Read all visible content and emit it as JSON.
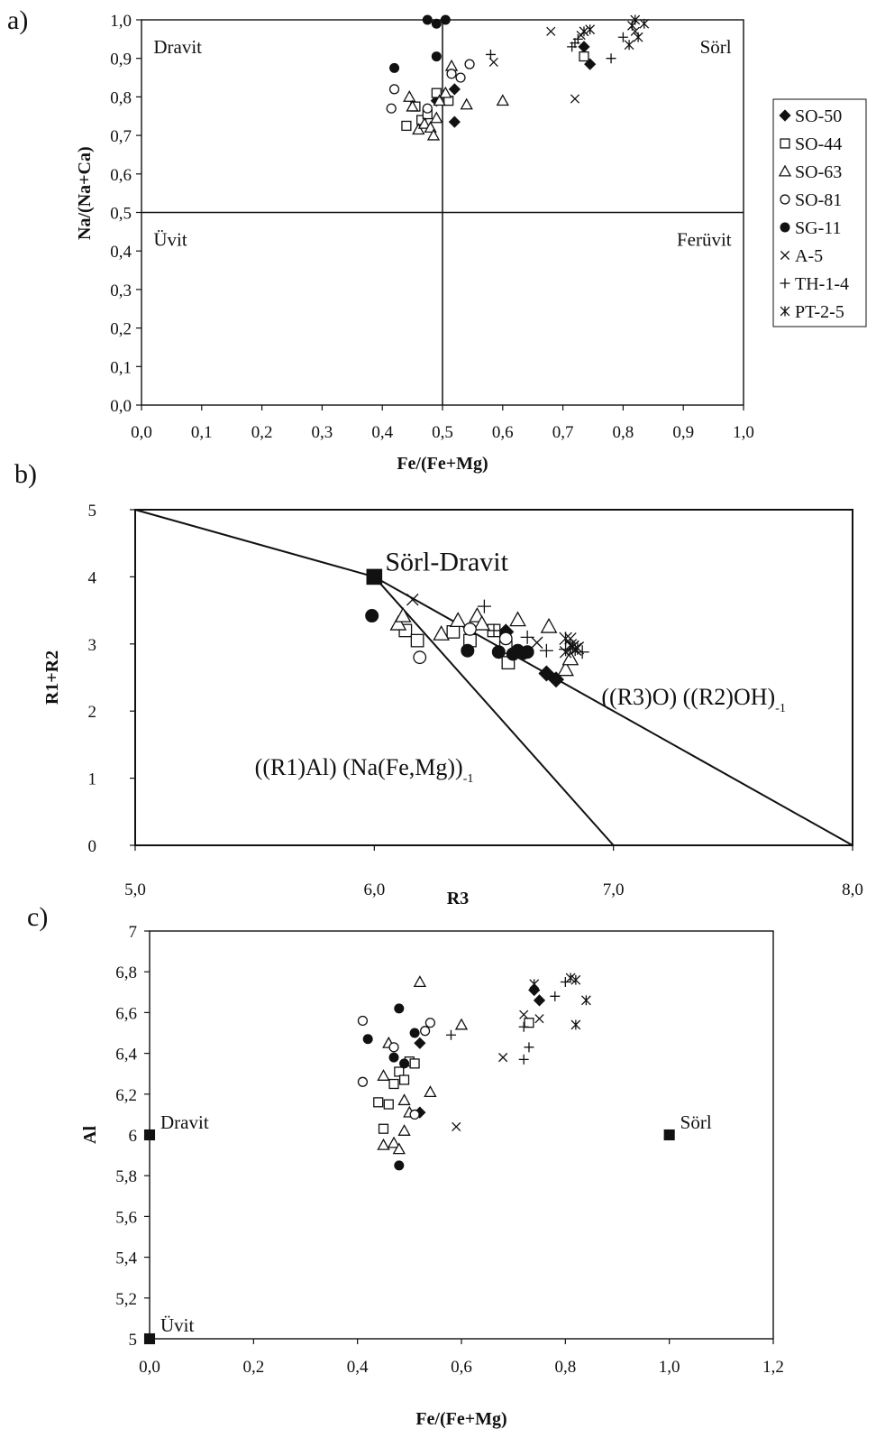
{
  "colors": {
    "ink": "#111111",
    "background": "#ffffff"
  },
  "legend": {
    "entries": [
      {
        "label": "SO-50",
        "marker": "diamond"
      },
      {
        "label": "SO-44",
        "marker": "square-open"
      },
      {
        "label": "SO-63",
        "marker": "triangle-open"
      },
      {
        "label": "SO-81",
        "marker": "circle-open"
      },
      {
        "label": "SG-11",
        "marker": "circle"
      },
      {
        "label": "A-5",
        "marker": "x"
      },
      {
        "label": "TH-1-4",
        "marker": "plus"
      },
      {
        "label": "PT-2-5",
        "marker": "asterisk"
      }
    ]
  },
  "chart_data": [
    {
      "panel": "a)",
      "type": "scatter",
      "title": "",
      "xlabel": "Fe/(Fe+Mg)",
      "ylabel": "Na/(Na+Ca)",
      "xlim": [
        0,
        1
      ],
      "ylim": [
        0,
        1
      ],
      "xticks": [
        "0,0",
        "0,1",
        "0,2",
        "0,3",
        "0,4",
        "0,5",
        "0,6",
        "0,7",
        "0,8",
        "0,9",
        "1,0"
      ],
      "yticks": [
        "0,0",
        "0,1",
        "0,2",
        "0,3",
        "0,4",
        "0,5",
        "0,6",
        "0,7",
        "0,8",
        "0,9",
        "1,0"
      ],
      "grid": false,
      "legend_position": "right",
      "divider_lines": [
        {
          "x": 0.5
        },
        {
          "y": 0.5
        }
      ],
      "regions": [
        {
          "label": "Dravit",
          "at": [
            0.02,
            0.93
          ]
        },
        {
          "label": "Sörl",
          "at": [
            0.98,
            0.93
          ]
        },
        {
          "label": "Üvit",
          "at": [
            0.02,
            0.43
          ]
        },
        {
          "label": "Ferüvit",
          "at": [
            0.98,
            0.43
          ]
        }
      ],
      "series": [
        {
          "name": "SO-50",
          "marker": "diamond",
          "points": [
            [
              0.49,
              0.79
            ],
            [
              0.52,
              0.82
            ],
            [
              0.52,
              0.735
            ],
            [
              0.735,
              0.93
            ],
            [
              0.745,
              0.885
            ]
          ]
        },
        {
          "name": "SO-44",
          "marker": "square-open",
          "points": [
            [
              0.44,
              0.725
            ],
            [
              0.455,
              0.775
            ],
            [
              0.465,
              0.74
            ],
            [
              0.475,
              0.755
            ],
            [
              0.49,
              0.81
            ],
            [
              0.51,
              0.79
            ],
            [
              0.735,
              0.905
            ]
          ]
        },
        {
          "name": "SO-63",
          "marker": "triangle-open",
          "points": [
            [
              0.445,
              0.8
            ],
            [
              0.45,
              0.775
            ],
            [
              0.46,
              0.715
            ],
            [
              0.47,
              0.73
            ],
            [
              0.48,
              0.72
            ],
            [
              0.485,
              0.7
            ],
            [
              0.49,
              0.745
            ],
            [
              0.495,
              0.79
            ],
            [
              0.505,
              0.81
            ],
            [
              0.515,
              0.88
            ],
            [
              0.54,
              0.78
            ],
            [
              0.6,
              0.79
            ]
          ]
        },
        {
          "name": "SO-81",
          "marker": "circle-open",
          "points": [
            [
              0.415,
              0.77
            ],
            [
              0.42,
              0.82
            ],
            [
              0.475,
              0.77
            ],
            [
              0.515,
              0.86
            ],
            [
              0.53,
              0.85
            ],
            [
              0.545,
              0.885
            ]
          ]
        },
        {
          "name": "SG-11",
          "marker": "circle",
          "points": [
            [
              0.42,
              0.875
            ],
            [
              0.475,
              1.0
            ],
            [
              0.49,
              0.99
            ],
            [
              0.49,
              0.905
            ],
            [
              0.505,
              1.0
            ]
          ]
        },
        {
          "name": "A-5",
          "marker": "x",
          "points": [
            [
              0.585,
              0.89
            ],
            [
              0.68,
              0.97
            ],
            [
              0.72,
              0.795
            ],
            [
              0.73,
              0.96
            ],
            [
              0.82,
              0.97
            ]
          ]
        },
        {
          "name": "TH-1-4",
          "marker": "plus",
          "points": [
            [
              0.58,
              0.91
            ],
            [
              0.715,
              0.93
            ],
            [
              0.72,
              0.94
            ],
            [
              0.725,
              0.95
            ],
            [
              0.78,
              0.9
            ],
            [
              0.8,
              0.955
            ]
          ]
        },
        {
          "name": "PT-2-5",
          "marker": "asterisk",
          "points": [
            [
              0.735,
              0.97
            ],
            [
              0.745,
              0.975
            ],
            [
              0.81,
              0.935
            ],
            [
              0.815,
              0.985
            ],
            [
              0.82,
              1.0
            ],
            [
              0.825,
              0.955
            ],
            [
              0.835,
              0.99
            ]
          ]
        }
      ]
    },
    {
      "panel": "b)",
      "type": "scatter",
      "title": "",
      "xlabel": "R3",
      "ylabel": "R1+R2",
      "xlim": [
        5,
        8
      ],
      "ylim": [
        0,
        5
      ],
      "xticks": [
        "5,0",
        "6,0",
        "7,0",
        "8,0"
      ],
      "yticks": [
        "0",
        "1",
        "2",
        "3",
        "4",
        "5"
      ],
      "grid": false,
      "reference_lines": [
        {
          "points": [
            [
              5,
              5
            ],
            [
              6,
              4
            ],
            [
              8,
              0
            ]
          ]
        },
        {
          "points": [
            [
              6,
              4
            ],
            [
              7,
              0
            ]
          ]
        }
      ],
      "endmember": {
        "label": "Sörl-Dravit",
        "point": [
          6,
          4
        ],
        "marker": "square"
      },
      "annotations": [
        {
          "text": "((R3)O) ((R2)OH)",
          "subscript": "-1",
          "at": [
            6.95,
            2.1
          ]
        },
        {
          "text": "((R1)Al) (Na(Fe,Mg))",
          "subscript": "-1",
          "at": [
            5.5,
            1.05
          ]
        }
      ],
      "series": [
        {
          "name": "SO-50",
          "marker": "diamond",
          "points": [
            [
              6.55,
              3.18
            ],
            [
              6.72,
              2.56
            ],
            [
              6.76,
              2.47
            ]
          ]
        },
        {
          "name": "SO-44",
          "marker": "square-open",
          "points": [
            [
              6.13,
              3.2
            ],
            [
              6.18,
              3.05
            ],
            [
              6.33,
              3.18
            ],
            [
              6.4,
              3.05
            ],
            [
              6.5,
              3.2
            ],
            [
              6.55,
              2.95
            ],
            [
              6.56,
              2.72
            ]
          ]
        },
        {
          "name": "SO-63",
          "marker": "triangle-open",
          "points": [
            [
              6.1,
              3.3
            ],
            [
              6.12,
              3.42
            ],
            [
              6.28,
              3.15
            ],
            [
              6.35,
              3.35
            ],
            [
              6.43,
              3.42
            ],
            [
              6.45,
              3.3
            ],
            [
              6.6,
              3.36
            ],
            [
              6.73,
              3.26
            ],
            [
              6.8,
              2.62
            ],
            [
              6.82,
              2.78
            ]
          ]
        },
        {
          "name": "SO-81",
          "marker": "circle-open",
          "points": [
            [
              6.19,
              2.8
            ],
            [
              6.4,
              3.22
            ],
            [
              6.55,
              3.08
            ]
          ]
        },
        {
          "name": "SG-11",
          "marker": "circle",
          "points": [
            [
              5.99,
              3.42
            ],
            [
              6.39,
              2.9
            ],
            [
              6.52,
              2.88
            ],
            [
              6.58,
              2.85
            ],
            [
              6.6,
              2.9
            ],
            [
              6.62,
              2.86
            ],
            [
              6.64,
              2.88
            ]
          ]
        },
        {
          "name": "A-5",
          "marker": "x",
          "points": [
            [
              6.16,
              3.66
            ],
            [
              6.68,
              3.02
            ],
            [
              6.8,
              2.88
            ],
            [
              6.82,
              3.08
            ]
          ]
        },
        {
          "name": "TH-1-4",
          "marker": "plus",
          "points": [
            [
              6.46,
              3.56
            ],
            [
              6.5,
              3.2
            ],
            [
              6.64,
              3.1
            ],
            [
              6.72,
              2.9
            ],
            [
              6.8,
              2.92
            ],
            [
              6.87,
              2.88
            ]
          ]
        },
        {
          "name": "PT-2-5",
          "marker": "asterisk",
          "points": [
            [
              6.8,
              3.08
            ],
            [
              6.82,
              2.98
            ],
            [
              6.83,
              2.96
            ],
            [
              6.84,
              2.92
            ],
            [
              6.85,
              2.94
            ]
          ]
        }
      ]
    },
    {
      "panel": "c)",
      "type": "scatter",
      "title": "",
      "xlabel": "Fe/(Fe+Mg)",
      "ylabel": "Al",
      "xlim": [
        0,
        1.2
      ],
      "ylim": [
        5,
        7
      ],
      "xticks": [
        "0,0",
        "0,2",
        "0,4",
        "0,6",
        "0,8",
        "1,0",
        "1,2"
      ],
      "yticks": [
        "5",
        "5,2",
        "5,4",
        "5,6",
        "5,8",
        "6",
        "6,2",
        "6,4",
        "6,6",
        "6,8",
        "7"
      ],
      "grid": false,
      "endmembers": [
        {
          "label": "Dravit",
          "point": [
            0,
            6
          ],
          "marker": "square"
        },
        {
          "label": "Sörl",
          "point": [
            1,
            6
          ],
          "marker": "square"
        },
        {
          "label": "Üvit",
          "point": [
            0,
            5
          ],
          "marker": "square"
        }
      ],
      "series": [
        {
          "name": "SO-50",
          "marker": "diamond",
          "points": [
            [
              0.52,
              6.45
            ],
            [
              0.52,
              6.11
            ],
            [
              0.74,
              6.71
            ],
            [
              0.75,
              6.66
            ]
          ]
        },
        {
          "name": "SO-44",
          "marker": "square-open",
          "points": [
            [
              0.44,
              6.16
            ],
            [
              0.45,
              6.03
            ],
            [
              0.46,
              6.15
            ],
            [
              0.47,
              6.25
            ],
            [
              0.48,
              6.31
            ],
            [
              0.49,
              6.27
            ],
            [
              0.5,
              6.36
            ],
            [
              0.51,
              6.35
            ],
            [
              0.73,
              6.55
            ]
          ]
        },
        {
          "name": "SO-63",
          "marker": "triangle-open",
          "points": [
            [
              0.45,
              6.29
            ],
            [
              0.45,
              5.95
            ],
            [
              0.46,
              6.45
            ],
            [
              0.47,
              5.96
            ],
            [
              0.48,
              5.93
            ],
            [
              0.49,
              6.02
            ],
            [
              0.49,
              6.17
            ],
            [
              0.5,
              6.11
            ],
            [
              0.52,
              6.75
            ],
            [
              0.54,
              6.21
            ],
            [
              0.6,
              6.54
            ]
          ]
        },
        {
          "name": "SO-81",
          "marker": "circle-open",
          "points": [
            [
              0.41,
              6.56
            ],
            [
              0.41,
              6.26
            ],
            [
              0.47,
              6.43
            ],
            [
              0.51,
              6.1
            ],
            [
              0.53,
              6.51
            ],
            [
              0.54,
              6.55
            ]
          ]
        },
        {
          "name": "SG-11",
          "marker": "circle",
          "points": [
            [
              0.42,
              6.47
            ],
            [
              0.47,
              6.38
            ],
            [
              0.48,
              5.85
            ],
            [
              0.48,
              6.62
            ],
            [
              0.49,
              6.35
            ],
            [
              0.51,
              6.5
            ]
          ]
        },
        {
          "name": "A-5",
          "marker": "x",
          "points": [
            [
              0.59,
              6.04
            ],
            [
              0.68,
              6.38
            ],
            [
              0.72,
              6.59
            ],
            [
              0.75,
              6.57
            ]
          ]
        },
        {
          "name": "TH-1-4",
          "marker": "plus",
          "points": [
            [
              0.58,
              6.49
            ],
            [
              0.72,
              6.53
            ],
            [
              0.72,
              6.37
            ],
            [
              0.73,
              6.43
            ],
            [
              0.78,
              6.68
            ],
            [
              0.8,
              6.75
            ]
          ]
        },
        {
          "name": "PT-2-5",
          "marker": "asterisk",
          "points": [
            [
              0.74,
              6.74
            ],
            [
              0.81,
              6.77
            ],
            [
              0.82,
              6.76
            ],
            [
              0.82,
              6.54
            ],
            [
              0.84,
              6.66
            ]
          ]
        }
      ]
    }
  ]
}
